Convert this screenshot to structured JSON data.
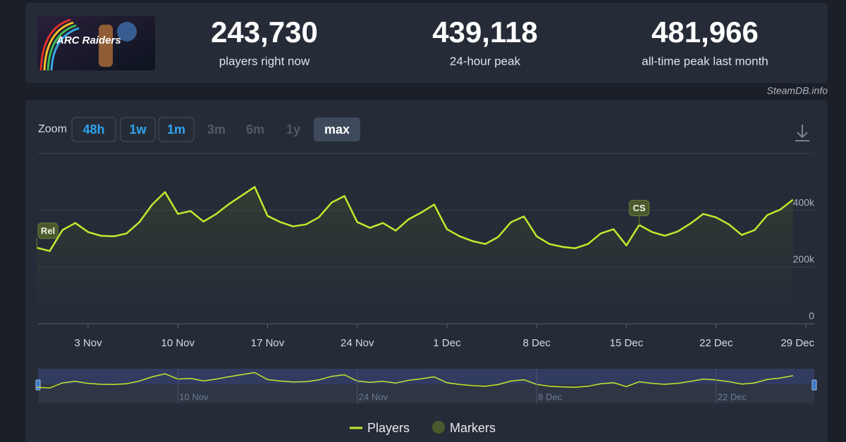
{
  "header": {
    "logo_text": "ARC Raiders",
    "stats": [
      {
        "value": "243,730",
        "label": "players right now"
      },
      {
        "value": "439,118",
        "label": "24-hour peak"
      },
      {
        "value": "481,966",
        "label": "all-time peak last month"
      }
    ],
    "source": "SteamDB.info"
  },
  "zoom": {
    "label": "Zoom",
    "options": [
      "48h",
      "1w",
      "1m",
      "3m",
      "6m",
      "1y",
      "max"
    ],
    "disabled": [
      "3m",
      "6m",
      "1y"
    ],
    "active": "max"
  },
  "chart_data": {
    "type": "line",
    "x": [
      "30 Oct",
      "31 Oct",
      "1 Nov",
      "2 Nov",
      "3 Nov",
      "4 Nov",
      "5 Nov",
      "6 Nov",
      "7 Nov",
      "8 Nov",
      "9 Nov",
      "10 Nov",
      "11 Nov",
      "12 Nov",
      "13 Nov",
      "14 Nov",
      "15 Nov",
      "16 Nov",
      "17 Nov",
      "18 Nov",
      "19 Nov",
      "20 Nov",
      "21 Nov",
      "22 Nov",
      "23 Nov",
      "24 Nov",
      "25 Nov",
      "26 Nov",
      "27 Nov",
      "28 Nov",
      "29 Nov",
      "30 Nov",
      "1 Dec",
      "2 Dec",
      "3 Dec",
      "4 Dec",
      "5 Dec",
      "6 Dec",
      "7 Dec",
      "8 Dec",
      "9 Dec",
      "10 Dec",
      "11 Dec",
      "12 Dec",
      "13 Dec",
      "14 Dec",
      "15 Dec",
      "16 Dec",
      "17 Dec",
      "18 Dec",
      "19 Dec",
      "20 Dec",
      "21 Dec",
      "22 Dec",
      "23 Dec",
      "24 Dec",
      "25 Dec",
      "26 Dec",
      "27 Dec",
      "28 Dec"
    ],
    "series": [
      {
        "name": "Players",
        "color": "#c5e82e",
        "values": [
          268000,
          256000,
          330000,
          355000,
          323000,
          310000,
          308000,
          318000,
          358000,
          420000,
          464000,
          387000,
          397000,
          360000,
          387000,
          422000,
          452000,
          482000,
          380000,
          358000,
          343000,
          350000,
          375000,
          427000,
          450000,
          358000,
          338000,
          355000,
          328000,
          368000,
          392000,
          420000,
          333000,
          308000,
          291000,
          281000,
          306000,
          358000,
          378000,
          308000,
          281000,
          271000,
          266000,
          281000,
          318000,
          333000,
          276000,
          348000,
          323000,
          310000,
          325000,
          353000,
          387000,
          375000,
          350000,
          313000,
          330000,
          383000,
          402000,
          437000
        ]
      }
    ],
    "markers": {
      "name": "Markers",
      "color": "#4b5a2c",
      "items": [
        {
          "x": "30 Oct",
          "label": "Rel"
        },
        {
          "x": "16 Dec",
          "label": "CS"
        }
      ]
    },
    "ylim": [
      0,
      600000
    ],
    "yticks": [
      {
        "value": 0,
        "label": "0"
      },
      {
        "value": 200000,
        "label": "200k"
      },
      {
        "value": 400000,
        "label": "400k"
      }
    ],
    "xticks": [
      "3 Nov",
      "10 Nov",
      "17 Nov",
      "24 Nov",
      "1 Dec",
      "8 Dec",
      "15 Dec",
      "22 Dec",
      "29 Dec"
    ],
    "navigator_ticks": [
      "10 Nov",
      "24 Nov",
      "8 Dec",
      "22 Dec"
    ],
    "grid": true
  }
}
